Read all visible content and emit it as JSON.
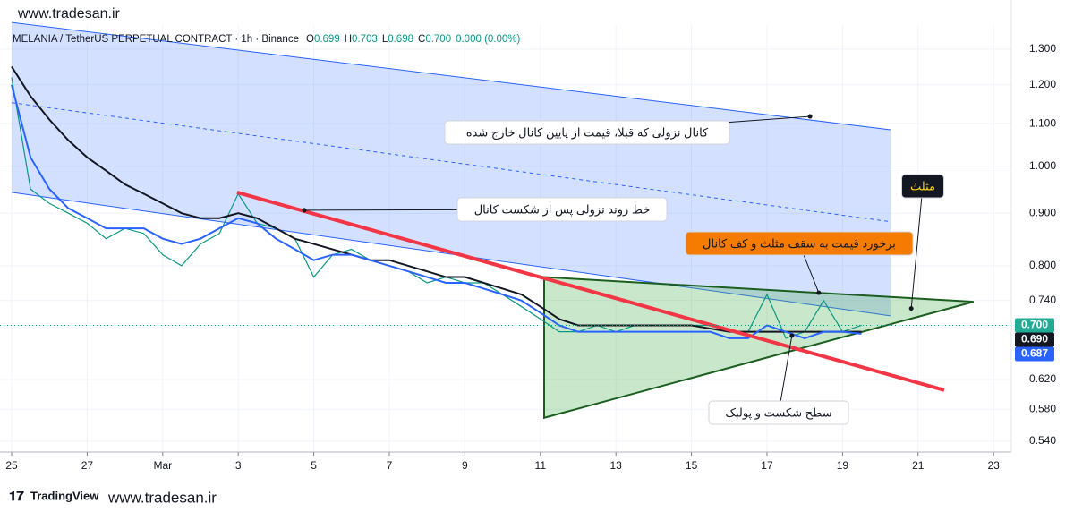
{
  "watermark": "www.tradesan.ir",
  "footer": {
    "brand": "TradingView",
    "watermark": "www.tradesan.ir"
  },
  "chart_data": {
    "type": "line",
    "title": "MELANIA / TetherUS PERPETUAL CONTRACT · 1h · Binance",
    "ohlc": [
      {
        "key": "O",
        "value": "0.699"
      },
      {
        "key": "H",
        "value": "0.703"
      },
      {
        "key": "L",
        "value": "0.698"
      },
      {
        "key": "C",
        "value": "0.700"
      }
    ],
    "change": "0.000 (0.00%)",
    "log_scale": true,
    "grid": true,
    "xlim": [
      -0.308,
      26.47
    ],
    "ylim": [
      0.527,
      1.372
    ],
    "xticks": [
      {
        "value": 0,
        "label": "25"
      },
      {
        "value": 2,
        "label": "27"
      },
      {
        "value": 4,
        "label": "Mar"
      },
      {
        "value": 6,
        "label": "3"
      },
      {
        "value": 8,
        "label": "5"
      },
      {
        "value": 10,
        "label": "7"
      },
      {
        "value": 12,
        "label": "9"
      },
      {
        "value": 14,
        "label": "11"
      },
      {
        "value": 16,
        "label": "13"
      },
      {
        "value": 18,
        "label": "15"
      },
      {
        "value": 20,
        "label": "17"
      },
      {
        "value": 22,
        "label": "19"
      },
      {
        "value": 24,
        "label": "21"
      },
      {
        "value": 26,
        "label": "23"
      }
    ],
    "yticks": [
      {
        "value": 1.3,
        "label": "1.300"
      },
      {
        "value": 1.2,
        "label": "1.200"
      },
      {
        "value": 1.1,
        "label": "1.100"
      },
      {
        "value": 1.0,
        "label": "1.000"
      },
      {
        "value": 0.9,
        "label": "0.900"
      },
      {
        "value": 0.8,
        "label": "0.800"
      },
      {
        "value": 0.74,
        "label": "0.740"
      },
      {
        "value": 0.62,
        "label": "0.620"
      },
      {
        "value": 0.58,
        "label": "0.580"
      },
      {
        "value": 0.54,
        "label": "0.540"
      }
    ],
    "x": [
      0,
      0.5,
      1,
      1.5,
      2,
      2.5,
      3,
      3.5,
      4,
      4.5,
      5,
      5.5,
      6,
      6.5,
      7,
      7.5,
      8,
      8.5,
      9,
      9.5,
      10,
      10.5,
      11,
      11.5,
      12,
      12.5,
      13,
      13.5,
      14,
      14.5,
      15,
      15.5,
      16,
      16.5,
      17,
      17.5,
      18,
      18.5,
      19,
      19.5,
      20,
      20.5,
      21,
      21.5,
      22,
      22.5
    ],
    "series": [
      {
        "color": "#089981",
        "last_label": "0.700",
        "label_bg": "#22ab94",
        "values": [
          1.22,
          0.95,
          0.92,
          0.9,
          0.88,
          0.85,
          0.87,
          0.86,
          0.82,
          0.8,
          0.84,
          0.86,
          0.94,
          0.88,
          0.87,
          0.85,
          0.78,
          0.82,
          0.83,
          0.81,
          0.8,
          0.79,
          0.77,
          0.78,
          0.77,
          0.77,
          0.75,
          0.73,
          0.71,
          0.69,
          0.69,
          0.7,
          0.69,
          0.7,
          0.7,
          0.7,
          0.7,
          0.7,
          0.69,
          0.69,
          0.75,
          0.68,
          0.69,
          0.74,
          0.69,
          0.7
        ]
      },
      {
        "color": "#131722",
        "last_label": "0.690",
        "label_bg": "#131722",
        "values": [
          1.25,
          1.17,
          1.11,
          1.06,
          1.02,
          0.99,
          0.96,
          0.94,
          0.92,
          0.9,
          0.89,
          0.89,
          0.9,
          0.89,
          0.87,
          0.85,
          0.84,
          0.83,
          0.82,
          0.81,
          0.81,
          0.8,
          0.79,
          0.78,
          0.78,
          0.77,
          0.76,
          0.75,
          0.73,
          0.71,
          0.7,
          0.7,
          0.7,
          0.7,
          0.7,
          0.7,
          0.7,
          0.695,
          0.69,
          0.69,
          0.69,
          0.69,
          0.69,
          0.69,
          0.69,
          0.69
        ]
      },
      {
        "color": "#2962ff",
        "last_label": "0.687",
        "label_bg": "#2962ff",
        "values": [
          1.2,
          1.02,
          0.95,
          0.91,
          0.89,
          0.87,
          0.87,
          0.87,
          0.85,
          0.84,
          0.85,
          0.87,
          0.89,
          0.88,
          0.85,
          0.83,
          0.81,
          0.82,
          0.82,
          0.81,
          0.8,
          0.79,
          0.78,
          0.77,
          0.77,
          0.76,
          0.75,
          0.74,
          0.72,
          0.7,
          0.69,
          0.69,
          0.69,
          0.69,
          0.69,
          0.69,
          0.69,
          0.69,
          0.68,
          0.68,
          0.7,
          0.69,
          0.68,
          0.69,
          0.69,
          0.687
        ]
      }
    ],
    "drawings": {
      "channel": {
        "color": "#2962ff",
        "fill": "rgba(41,98,255,0.2)",
        "upper": [
          [
            0,
            1.38
          ],
          [
            23.27,
            1.085
          ]
        ],
        "middle": [
          [
            0,
            1.153
          ],
          [
            23.27,
            0.883
          ]
        ],
        "lower": [
          [
            0,
            0.943
          ],
          [
            23.27,
            0.715
          ]
        ]
      },
      "trendline": {
        "color": "#f23645",
        "points": [
          [
            5.97,
            0.943
          ],
          [
            24.69,
            0.6055
          ]
        ]
      },
      "triangle": {
        "color": "#1b5e20",
        "fill": "rgba(76,175,80,0.3)",
        "points": [
          [
            14.1,
            0.78
          ],
          [
            14.1,
            0.569
          ],
          [
            25.47,
            0.738
          ]
        ]
      }
    },
    "annotations": [
      {
        "text": "کانال نزولی که قبلا، قیمت از پایین کانال خارج شده",
        "target": [
          21.14,
          1.118
        ],
        "background": "#ffffff",
        "text_color": "#131722"
      },
      {
        "text": "خط روند نزولی پس از شکست کانال",
        "target": [
          7.75,
          0.906
        ],
        "background": "#ffffff",
        "text_color": "#131722"
      },
      {
        "text": "برخورد قیمت به سقف مثلث و کف کانال",
        "target": [
          21.37,
          0.753
        ],
        "background": "#f57c00",
        "text_color": "#131722"
      },
      {
        "text": "مثلث",
        "target": [
          23.82,
          0.727
        ],
        "background": "#131722",
        "text_color": "#ffd600"
      },
      {
        "text": "سطح شکست و پولبک",
        "target": [
          20.66,
          0.684
        ],
        "background": "#ffffff",
        "text_color": "#131722"
      }
    ]
  }
}
